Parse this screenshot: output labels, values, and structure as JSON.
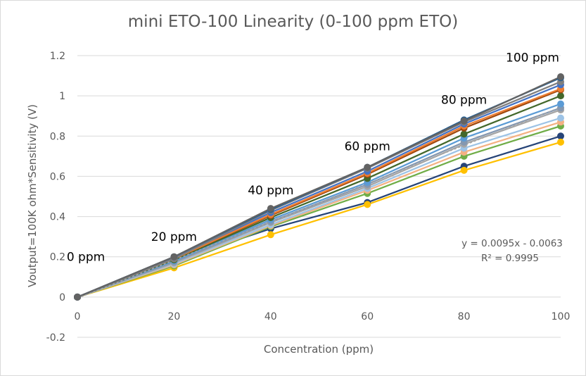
{
  "chart_data": {
    "type": "line",
    "title": "mini ETO-100 Linearity (0-100 ppm ETO)",
    "xlabel": "Concentration (ppm)",
    "ylabel": "Voutput=100K ohm*Sensitivity (V)",
    "x": [
      0,
      20,
      40,
      60,
      80,
      100
    ],
    "xlim": [
      0,
      100
    ],
    "ylim": [
      -0.2,
      1.2
    ],
    "x_ticks": [
      "0",
      "20",
      "40",
      "60",
      "80",
      "100"
    ],
    "y_ticks": [
      "-0.2",
      "0",
      "0.2",
      "0.4",
      "0.6",
      "0.8",
      "1",
      "1.2"
    ],
    "grid": "horizontal",
    "annotations": [
      {
        "text": "0 ppm",
        "x": 0,
        "y": 0.18
      },
      {
        "text": "20 ppm",
        "x": 20,
        "y": 0.28
      },
      {
        "text": "40 ppm",
        "x": 40,
        "y": 0.51
      },
      {
        "text": "60 ppm",
        "x": 60,
        "y": 0.73
      },
      {
        "text": "80 ppm",
        "x": 80,
        "y": 0.96
      },
      {
        "text": "100 ppm",
        "x": 100,
        "y": 1.17
      }
    ],
    "trendline": {
      "equation": "y = 0.0095x - 0.0063",
      "r2": "R² = 0.9995",
      "dashed_color": "#a6a6a6",
      "values": [
        -0.0063,
        0.1837,
        0.3737,
        0.5637,
        0.7537,
        0.9437
      ]
    },
    "series": [
      {
        "color": "#264478",
        "values": [
          0,
          0.18,
          0.34,
          0.47,
          0.65,
          0.8
        ]
      },
      {
        "color": "#ffc000",
        "values": [
          0,
          0.145,
          0.31,
          0.46,
          0.63,
          0.77
        ]
      },
      {
        "color": "#70ad47",
        "values": [
          0,
          0.155,
          0.35,
          0.515,
          0.7,
          0.85
        ]
      },
      {
        "color": "#f4b183",
        "values": [
          0,
          0.16,
          0.355,
          0.53,
          0.72,
          0.87
        ]
      },
      {
        "color": "#9dc3e6",
        "values": [
          0,
          0.165,
          0.36,
          0.54,
          0.74,
          0.89
        ]
      },
      {
        "color": "#a5a5a5",
        "values": [
          0,
          0.17,
          0.37,
          0.55,
          0.76,
          0.93
        ]
      },
      {
        "color": "#8497b0",
        "values": [
          0,
          0.175,
          0.375,
          0.56,
          0.77,
          0.94
        ]
      },
      {
        "color": "#5b9bd5",
        "values": [
          0,
          0.18,
          0.385,
          0.57,
          0.79,
          0.96
        ]
      },
      {
        "color": "#43682b",
        "values": [
          0,
          0.185,
          0.395,
          0.59,
          0.81,
          1.0
        ]
      },
      {
        "color": "#9e480e",
        "values": [
          0,
          0.19,
          0.405,
          0.61,
          0.84,
          1.03
        ]
      },
      {
        "color": "#ed7d31",
        "values": [
          0,
          0.19,
          0.41,
          0.615,
          0.85,
          1.035
        ]
      },
      {
        "color": "#4472c4",
        "values": [
          0,
          0.195,
          0.42,
          0.625,
          0.86,
          1.055
        ]
      },
      {
        "color": "#7f7f7f",
        "values": [
          0,
          0.19,
          0.43,
          0.64,
          0.87,
          1.07
        ]
      },
      {
        "color": "#255e91",
        "values": [
          0,
          0.2,
          0.435,
          0.645,
          0.88,
          1.09
        ]
      },
      {
        "color": "#636363",
        "values": [
          0,
          0.2,
          0.44,
          0.645,
          0.875,
          1.095
        ]
      }
    ]
  }
}
